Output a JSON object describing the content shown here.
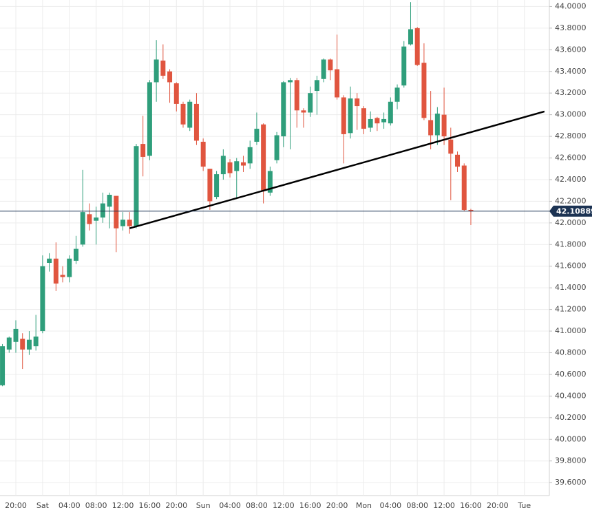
{
  "chart_data": {
    "type": "candlestick",
    "categories": [
      null,
      null,
      "20:00",
      null,
      null,
      null,
      "Sat",
      null,
      null,
      null,
      "04:00",
      null,
      null,
      null,
      "08:00",
      null,
      null,
      null,
      "12:00",
      null,
      null,
      null,
      "16:00",
      null,
      null,
      null,
      "20:00",
      null,
      null,
      null,
      "Sun",
      null,
      null,
      null,
      "04:00",
      null,
      null,
      null,
      "08:00",
      null,
      null,
      null,
      "12:00",
      null,
      null,
      null,
      "16:00",
      null,
      null,
      null,
      "20:00",
      null,
      null,
      null,
      "Mon",
      null,
      null,
      null,
      "04:00",
      null,
      null,
      null,
      "08:00",
      null,
      null,
      null,
      "12:00",
      null,
      null,
      null,
      "16:00",
      null,
      null,
      null,
      "20:00",
      null,
      null,
      null,
      "Tue",
      null,
      null,
      null
    ],
    "open": [
      40.5,
      40.83,
      40.9,
      40.93,
      40.83,
      40.86,
      41.0,
      41.63,
      41.67,
      41.52,
      41.5,
      41.65,
      41.8,
      42.08,
      42.02,
      42.05,
      42.15,
      42.25,
      41.97,
      42.03,
      41.97,
      42.73,
      42.62,
      43.3,
      43.5,
      43.4,
      43.29,
      43.1,
      42.88,
      43.1,
      42.75,
      42.5,
      42.24,
      42.45,
      42.56,
      42.48,
      42.56,
      42.55,
      42.75,
      42.91,
      42.28,
      42.58,
      42.8,
      43.3,
      43.32,
      43.04,
      43.02,
      43.22,
      43.33,
      43.51,
      43.42,
      43.16,
      42.83,
      43.15,
      43.06,
      42.88,
      42.97,
      42.93,
      42.92,
      43.12,
      43.27,
      43.65,
      43.8,
      43.48,
      42.95,
      42.81,
      43.0,
      42.77,
      42.63,
      42.53,
      42.12,
      null,
      null,
      null,
      null,
      null,
      null,
      null,
      null,
      null,
      null,
      null
    ],
    "high": [
      40.88,
      40.95,
      41.1,
      40.98,
      41.0,
      41.15,
      41.7,
      41.72,
      41.82,
      41.6,
      41.7,
      41.88,
      42.49,
      42.18,
      42.15,
      42.28,
      42.28,
      42.25,
      42.1,
      42.1,
      42.73,
      42.99,
      43.32,
      43.69,
      43.65,
      43.42,
      43.3,
      43.12,
      43.14,
      43.2,
      42.78,
      42.5,
      42.48,
      42.68,
      42.59,
      42.6,
      42.62,
      42.76,
      43.02,
      42.92,
      42.52,
      42.84,
      43.31,
      43.34,
      43.34,
      43.06,
      43.26,
      43.36,
      43.52,
      43.52,
      43.74,
      43.18,
      43.26,
      43.2,
      43.08,
      43.03,
      42.98,
      43.02,
      43.16,
      43.28,
      43.68,
      44.04,
      43.81,
      43.66,
      43.22,
      43.07,
      43.25,
      42.88,
      42.66,
      42.55,
      42.13,
      null,
      null,
      null,
      null,
      null,
      null,
      null,
      null,
      null,
      null,
      null
    ],
    "low": [
      40.49,
      40.8,
      40.8,
      40.65,
      40.78,
      40.82,
      40.98,
      41.55,
      41.37,
      41.45,
      41.45,
      41.62,
      41.78,
      41.93,
      41.8,
      42.0,
      41.95,
      41.73,
      41.93,
      41.9,
      41.95,
      42.43,
      42.58,
      43.12,
      43.33,
      43.11,
      43.03,
      42.88,
      42.85,
      42.72,
      42.48,
      42.12,
      42.22,
      42.4,
      42.42,
      42.22,
      42.47,
      42.5,
      42.72,
      42.18,
      42.25,
      42.55,
      42.7,
      42.68,
      42.88,
      42.88,
      42.98,
      43.0,
      43.3,
      43.32,
      43.14,
      42.55,
      42.78,
      42.86,
      42.82,
      42.84,
      42.85,
      42.87,
      42.9,
      43.05,
      43.25,
      43.64,
      43.45,
      42.95,
      42.68,
      42.72,
      42.72,
      42.21,
      42.47,
      42.11,
      41.98,
      null,
      null,
      null,
      null,
      null,
      null,
      null,
      null,
      null,
      null,
      null
    ],
    "close": [
      40.86,
      40.94,
      41.02,
      40.83,
      40.92,
      40.95,
      41.6,
      41.67,
      41.44,
      41.5,
      41.67,
      41.76,
      42.1,
      41.99,
      42.05,
      42.18,
      42.26,
      41.95,
      42.03,
      41.97,
      42.71,
      42.61,
      43.3,
      43.51,
      43.36,
      43.3,
      43.1,
      42.91,
      43.12,
      42.76,
      42.52,
      42.2,
      42.45,
      42.62,
      42.46,
      42.57,
      42.53,
      42.7,
      42.87,
      42.3,
      42.48,
      42.81,
      43.3,
      43.32,
      43.04,
      43.02,
      43.2,
      43.32,
      43.51,
      43.41,
      43.16,
      42.82,
      43.15,
      43.08,
      42.87,
      42.96,
      42.92,
      42.96,
      43.12,
      43.25,
      43.63,
      43.79,
      43.46,
      42.97,
      42.81,
      43.01,
      42.8,
      42.64,
      42.52,
      42.12,
      42.11,
      null,
      null,
      null,
      null,
      null,
      null,
      null,
      null,
      null,
      null,
      null
    ],
    "up_color": "#2f9e7b",
    "down_color": "#e0553f",
    "ylim": [
      39.48,
      44.06
    ],
    "yticks": [
      {
        "value": 39.6,
        "label": "39.6000"
      },
      {
        "value": 39.8,
        "label": "39.8000"
      },
      {
        "value": 40.0,
        "label": "40.0000"
      },
      {
        "value": 40.2,
        "label": "40.2000"
      },
      {
        "value": 40.4,
        "label": "40.4000"
      },
      {
        "value": 40.6,
        "label": "40.6000"
      },
      {
        "value": 40.8,
        "label": "40.8000"
      },
      {
        "value": 41.0,
        "label": "41.0000"
      },
      {
        "value": 41.2,
        "label": "41.2000"
      },
      {
        "value": 41.4,
        "label": "41.4000"
      },
      {
        "value": 41.6,
        "label": "41.6000"
      },
      {
        "value": 41.8,
        "label": "41.8000"
      },
      {
        "value": 42.0,
        "label": "42.0000"
      },
      {
        "value": 42.2,
        "label": "42.2000"
      },
      {
        "value": 42.4,
        "label": "42.4000"
      },
      {
        "value": 42.6,
        "label": "42.6000"
      },
      {
        "value": 42.8,
        "label": "42.8000"
      },
      {
        "value": 43.0,
        "label": "43.0000"
      },
      {
        "value": 43.2,
        "label": "43.2000"
      },
      {
        "value": 43.4,
        "label": "43.4000"
      },
      {
        "value": 43.6,
        "label": "43.6000"
      },
      {
        "value": 43.8,
        "label": "43.8000"
      },
      {
        "value": 44.0,
        "label": "44.0000"
      }
    ],
    "grid": true,
    "last_price": 42.108893,
    "last_price_color": "#1c3353",
    "trendline": {
      "start": {
        "index": 19,
        "price": 41.95
      },
      "end": {
        "index": 81,
        "price": 43.03
      },
      "color": "#000000"
    }
  }
}
